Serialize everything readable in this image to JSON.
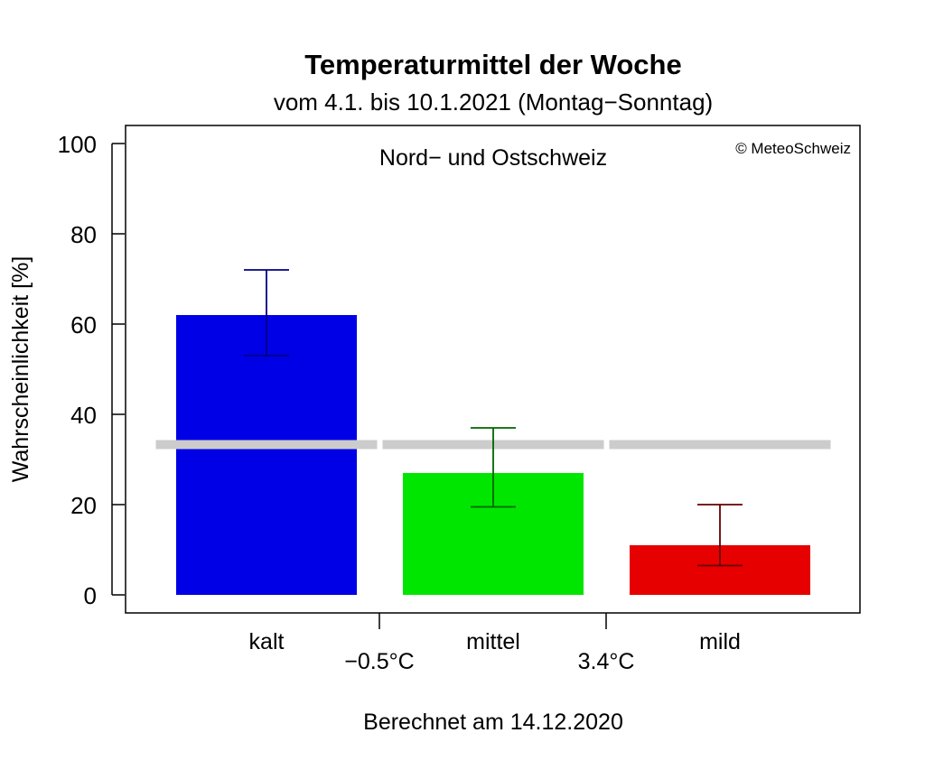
{
  "chart_data": {
    "type": "bar",
    "title": "Temperaturmittel der Woche",
    "subtitle": "vom 4.1. bis 10.1.2021 (Montag−Sonntag)",
    "region": "Nord− und Ostschweiz",
    "copyright": "© MeteoSchweiz",
    "ylabel": "Wahrscheinlichkeit [%]",
    "xlabel": "",
    "ylim": [
      0,
      100
    ],
    "yticks": [
      0,
      20,
      40,
      60,
      80,
      100
    ],
    "categories": [
      "kalt",
      "mittel",
      "mild"
    ],
    "values": [
      62,
      27,
      11
    ],
    "error_low": [
      53,
      19.5,
      6.5
    ],
    "error_high": [
      72,
      37,
      20
    ],
    "climatology": [
      33.3,
      33.3,
      33.3
    ],
    "bar_colors": [
      "#0000e6",
      "#00e600",
      "#e60000"
    ],
    "error_colors": [
      "#000080",
      "#006400",
      "#640000"
    ],
    "climatology_color": "#cccccc",
    "thresholds": [
      "−0.5°C",
      "3.4°C"
    ],
    "grid": false,
    "footer": "Berechnet am 14.12.2020"
  }
}
